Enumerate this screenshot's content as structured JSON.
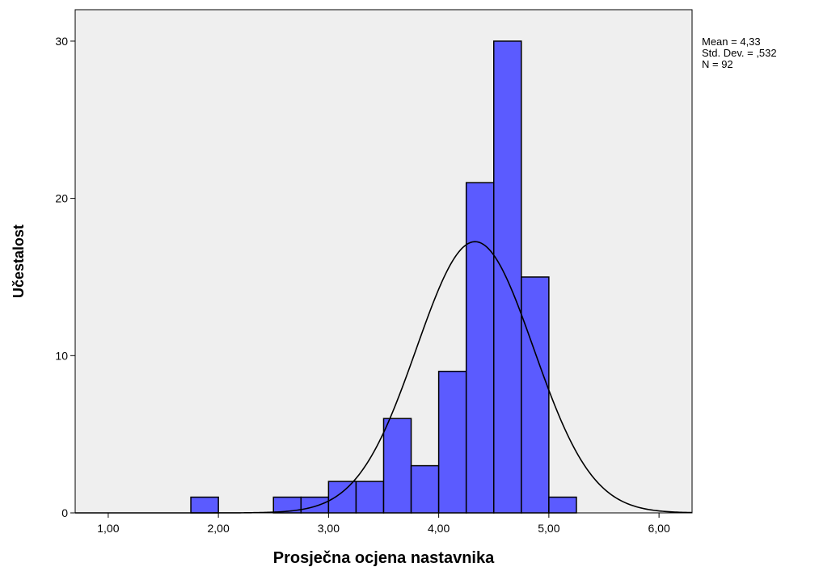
{
  "chart_data": {
    "type": "bar",
    "subtype": "histogram",
    "xlabel": "Prosječna ocjena nastavnika",
    "ylabel": "Učestalost",
    "xlim": [
      0.7,
      6.3
    ],
    "ylim": [
      0,
      32
    ],
    "x_ticks": [
      1,
      2,
      3,
      4,
      5,
      6
    ],
    "x_tick_labels": [
      "1,00",
      "2,00",
      "3,00",
      "4,00",
      "5,00",
      "6,00"
    ],
    "y_ticks": [
      0,
      10,
      20,
      30
    ],
    "y_tick_labels": [
      "0",
      "10",
      "20",
      "30"
    ],
    "bin_width": 0.25,
    "bins": [
      {
        "start": 1.75,
        "end": 2.0,
        "count": 1
      },
      {
        "start": 2.5,
        "end": 2.75,
        "count": 1
      },
      {
        "start": 2.75,
        "end": 3.0,
        "count": 1
      },
      {
        "start": 3.0,
        "end": 3.25,
        "count": 2
      },
      {
        "start": 3.25,
        "end": 3.5,
        "count": 2
      },
      {
        "start": 3.5,
        "end": 3.75,
        "count": 6
      },
      {
        "start": 3.75,
        "end": 4.0,
        "count": 3
      },
      {
        "start": 4.0,
        "end": 4.25,
        "count": 9
      },
      {
        "start": 4.25,
        "end": 4.5,
        "count": 21
      },
      {
        "start": 4.5,
        "end": 4.75,
        "count": 30
      },
      {
        "start": 4.75,
        "end": 5.0,
        "count": 15
      },
      {
        "start": 5.0,
        "end": 5.25,
        "count": 1
      }
    ],
    "normal_curve": {
      "mean": 4.33,
      "std": 0.532,
      "n": 92
    },
    "stats_lines": [
      "Mean = 4,33",
      "Std. Dev. = ,532",
      "N = 92"
    ],
    "colors": {
      "bar_fill": "#5B5BFF",
      "bar_stroke": "#000000",
      "plot_background": "#EFEFEF",
      "curve": "#000000"
    },
    "grid": false,
    "legend": "none"
  }
}
